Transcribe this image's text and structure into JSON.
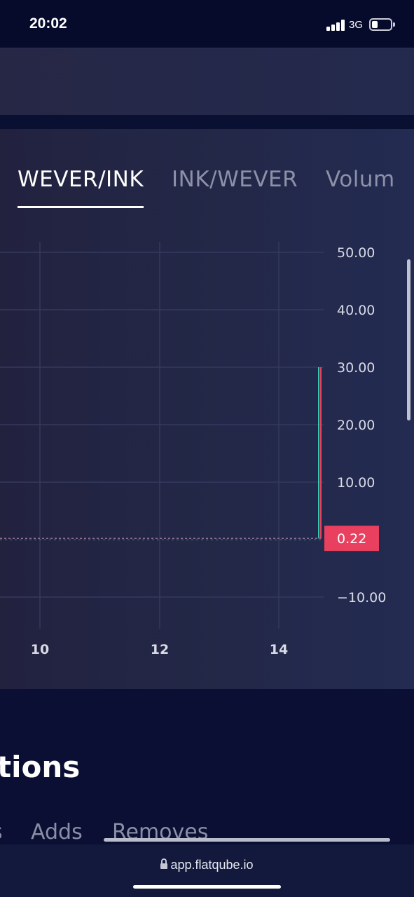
{
  "status_bar": {
    "time": "20:02",
    "network": "3G"
  },
  "chart_tabs": {
    "items": [
      {
        "label": "WEVER/INK",
        "active": true
      },
      {
        "label": "INK/WEVER",
        "active": false
      },
      {
        "label": "Volume",
        "active": false
      }
    ]
  },
  "chart_data": {
    "type": "line",
    "y_tick_labels": [
      "50.00",
      "40.00",
      "30.00",
      "20.00",
      "10.00",
      "−10.00"
    ],
    "y_ticks": [
      50,
      40,
      30,
      20,
      10,
      -10
    ],
    "x_tick_labels": [
      "10",
      "12",
      "14"
    ],
    "ylim": [
      -10,
      50
    ],
    "last_value_label": "0.22",
    "last_value": 0.22,
    "spike_high": 30,
    "spike_low": 0,
    "grid": true,
    "colors": {
      "last_value_bg": "#e8405e",
      "up_line": "#33c7b0",
      "down_line": "#e8405e",
      "grid": "#34395e"
    }
  },
  "section": {
    "title": "tions"
  },
  "sub_tabs": {
    "partial": "s",
    "adds": "Adds",
    "removes": "Removes"
  },
  "browser": {
    "url": "app.flatqube.io"
  }
}
